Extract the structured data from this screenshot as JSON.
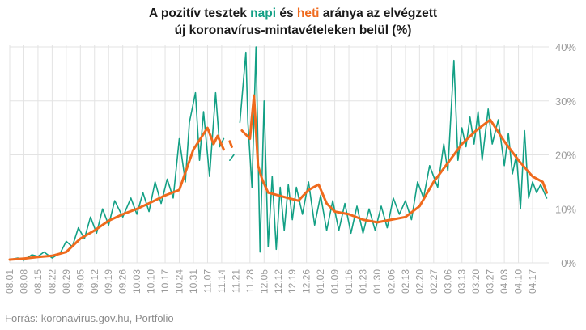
{
  "title": {
    "line1_prefix": "A pozitív tesztek ",
    "napi": "napi",
    "line1_middle": " és ",
    "heti": "heti",
    "line1_suffix": " aránya az elvégzett",
    "line2": "új koronavírus-mintavételeken belül (%)"
  },
  "source": "Forrás: koronavirus.gov.hu, Portfolio",
  "colors": {
    "daily": "#13a085",
    "weekly": "#ef6a1d",
    "grid": "#e3e3e3",
    "tick": "#9a9a9a"
  },
  "chart_data": {
    "type": "line",
    "title": "A pozitív tesztek napi és heti aránya az elvégzett új koronavírus-mintavételeken belül (%)",
    "x_start": "2020-08-01",
    "x_end": "2021-04-25",
    "xlim": [
      "2020-08-01",
      "2021-04-25"
    ],
    "x_tick_labels": [
      "08.01",
      "08.08",
      "08.15",
      "08.22",
      "08.29",
      "09.05",
      "09.12",
      "09.19",
      "09.26",
      "10.03",
      "10.10",
      "10.17",
      "10.24",
      "10.31",
      "11.07",
      "11.14",
      "11.21",
      "11.28",
      "12.05",
      "12.12",
      "12.19",
      "12.26",
      "01.02",
      "01.09",
      "01.16",
      "01.23",
      "01.30",
      "02.06",
      "02.13",
      "02.20",
      "02.27",
      "03.06",
      "03.13",
      "03.20",
      "03.27",
      "04.03",
      "04.10",
      "04.17"
    ],
    "y_ticks": [
      0,
      10,
      20,
      30,
      40
    ],
    "y_tick_labels": [
      "0%",
      "10%",
      "20%",
      "30%",
      "40%"
    ],
    "ylim": [
      0,
      40
    ],
    "grid": true,
    "series": [
      {
        "name": "napi",
        "color": "#13a085",
        "points": [
          [
            "2020-08-01",
            0.6
          ],
          [
            "2020-08-05",
            0.9
          ],
          [
            "2020-08-08",
            0.5
          ],
          [
            "2020-08-12",
            1.5
          ],
          [
            "2020-08-15",
            1.2
          ],
          [
            "2020-08-18",
            2.0
          ],
          [
            "2020-08-22",
            0.9
          ],
          [
            "2020-08-26",
            1.8
          ],
          [
            "2020-08-29",
            4.0
          ],
          [
            "2020-09-01",
            3.0
          ],
          [
            "2020-09-04",
            6.5
          ],
          [
            "2020-09-07",
            4.5
          ],
          [
            "2020-09-10",
            8.5
          ],
          [
            "2020-09-13",
            5.5
          ],
          [
            "2020-09-16",
            10.0
          ],
          [
            "2020-09-19",
            7.0
          ],
          [
            "2020-09-22",
            11.5
          ],
          [
            "2020-09-26",
            8.5
          ],
          [
            "2020-09-30",
            12.0
          ],
          [
            "2020-10-03",
            9.0
          ],
          [
            "2020-10-06",
            13.0
          ],
          [
            "2020-10-09",
            9.5
          ],
          [
            "2020-10-12",
            15.0
          ],
          [
            "2020-10-15",
            11.0
          ],
          [
            "2020-10-18",
            15.5
          ],
          [
            "2020-10-21",
            12.0
          ],
          [
            "2020-10-24",
            23.0
          ],
          [
            "2020-10-27",
            15.0
          ],
          [
            "2020-10-29",
            26.0
          ],
          [
            "2020-11-01",
            31.5
          ],
          [
            "2020-11-03",
            19.0
          ],
          [
            "2020-11-05",
            28.0
          ],
          [
            "2020-11-08",
            16.0
          ],
          [
            "2020-11-11",
            31.5
          ],
          [
            "2020-11-13",
            21.5
          ],
          [
            "2020-11-15",
            23.0
          ],
          [
            "2020-11-16",
            null
          ],
          [
            "2020-11-18",
            19.0
          ],
          [
            "2020-11-20",
            20.0
          ],
          [
            "2020-11-21",
            null
          ],
          [
            "2020-11-23",
            26.0
          ],
          [
            "2020-11-26",
            39.0
          ],
          [
            "2020-11-27",
            26.0
          ],
          [
            "2020-11-29",
            14.0
          ],
          [
            "2020-12-01",
            40.0
          ],
          [
            "2020-12-03",
            2.0
          ],
          [
            "2020-12-05",
            30.0
          ],
          [
            "2020-12-07",
            3.0
          ],
          [
            "2020-12-09",
            16.0
          ],
          [
            "2020-12-11",
            2.5
          ],
          [
            "2020-12-13",
            14.0
          ],
          [
            "2020-12-15",
            6.0
          ],
          [
            "2020-12-17",
            14.5
          ],
          [
            "2020-12-19",
            8.0
          ],
          [
            "2020-12-21",
            14.0
          ],
          [
            "2020-12-24",
            9.0
          ],
          [
            "2020-12-27",
            15.0
          ],
          [
            "2020-12-30",
            7.0
          ],
          [
            "2021-01-02",
            12.5
          ],
          [
            "2021-01-05",
            6.0
          ],
          [
            "2021-01-08",
            11.5
          ],
          [
            "2021-01-11",
            6.0
          ],
          [
            "2021-01-14",
            11.0
          ],
          [
            "2021-01-17",
            5.5
          ],
          [
            "2021-01-20",
            10.5
          ],
          [
            "2021-01-23",
            5.5
          ],
          [
            "2021-01-26",
            10.0
          ],
          [
            "2021-01-29",
            6.0
          ],
          [
            "2021-02-01",
            10.5
          ],
          [
            "2021-02-04",
            6.5
          ],
          [
            "2021-02-07",
            12.0
          ],
          [
            "2021-02-10",
            9.0
          ],
          [
            "2021-02-13",
            11.5
          ],
          [
            "2021-02-16",
            8.0
          ],
          [
            "2021-02-19",
            15.0
          ],
          [
            "2021-02-22",
            12.0
          ],
          [
            "2021-02-25",
            18.0
          ],
          [
            "2021-03-01",
            14.0
          ],
          [
            "2021-03-04",
            22.0
          ],
          [
            "2021-03-06",
            17.0
          ],
          [
            "2021-03-09",
            37.5
          ],
          [
            "2021-03-11",
            19.0
          ],
          [
            "2021-03-13",
            25.0
          ],
          [
            "2021-03-15",
            21.5
          ],
          [
            "2021-03-17",
            27.0
          ],
          [
            "2021-03-19",
            22.0
          ],
          [
            "2021-03-21",
            28.0
          ],
          [
            "2021-03-23",
            19.0
          ],
          [
            "2021-03-26",
            28.5
          ],
          [
            "2021-03-28",
            22.0
          ],
          [
            "2021-03-31",
            26.5
          ],
          [
            "2021-04-03",
            18.0
          ],
          [
            "2021-04-05",
            24.0
          ],
          [
            "2021-04-07",
            16.5
          ],
          [
            "2021-04-09",
            20.0
          ],
          [
            "2021-04-11",
            10.0
          ],
          [
            "2021-04-13",
            24.5
          ],
          [
            "2021-04-15",
            12.0
          ],
          [
            "2021-04-17",
            15.0
          ],
          [
            "2021-04-19",
            13.0
          ],
          [
            "2021-04-21",
            14.5
          ],
          [
            "2021-04-24",
            12.0
          ]
        ]
      },
      {
        "name": "heti",
        "color": "#ef6a1d",
        "points": [
          [
            "2020-08-01",
            0.6
          ],
          [
            "2020-08-08",
            0.8
          ],
          [
            "2020-08-15",
            1.1
          ],
          [
            "2020-08-22",
            1.3
          ],
          [
            "2020-08-29",
            2.0
          ],
          [
            "2020-09-05",
            4.5
          ],
          [
            "2020-09-12",
            6.0
          ],
          [
            "2020-09-19",
            7.8
          ],
          [
            "2020-09-26",
            9.0
          ],
          [
            "2020-10-03",
            10.0
          ],
          [
            "2020-10-10",
            11.2
          ],
          [
            "2020-10-17",
            12.5
          ],
          [
            "2020-10-24",
            13.5
          ],
          [
            "2020-10-31",
            21.0
          ],
          [
            "2020-11-07",
            25.0
          ],
          [
            "2020-11-10",
            22.0
          ],
          [
            "2020-11-12",
            23.5
          ],
          [
            "2020-11-15",
            21.0
          ],
          [
            "2020-11-16",
            null
          ],
          [
            "2020-11-18",
            22.5
          ],
          [
            "2020-11-19",
            21.5
          ],
          [
            "2020-11-20",
            null
          ],
          [
            "2020-11-24",
            24.5
          ],
          [
            "2020-11-28",
            23.0
          ],
          [
            "2020-11-30",
            31.0
          ],
          [
            "2020-12-02",
            18.0
          ],
          [
            "2020-12-04",
            15.5
          ],
          [
            "2020-12-07",
            13.0
          ],
          [
            "2020-12-12",
            12.5
          ],
          [
            "2020-12-17",
            12.0
          ],
          [
            "2020-12-22",
            11.5
          ],
          [
            "2020-12-27",
            13.5
          ],
          [
            "2021-01-01",
            14.5
          ],
          [
            "2021-01-05",
            11.0
          ],
          [
            "2021-01-09",
            9.5
          ],
          [
            "2021-01-16",
            9.0
          ],
          [
            "2021-01-23",
            8.0
          ],
          [
            "2021-01-30",
            7.5
          ],
          [
            "2021-02-06",
            8.0
          ],
          [
            "2021-02-13",
            8.5
          ],
          [
            "2021-02-20",
            10.5
          ],
          [
            "2021-02-27",
            15.0
          ],
          [
            "2021-03-06",
            18.5
          ],
          [
            "2021-03-13",
            22.0
          ],
          [
            "2021-03-20",
            24.5
          ],
          [
            "2021-03-27",
            26.5
          ],
          [
            "2021-04-03",
            22.5
          ],
          [
            "2021-04-10",
            19.0
          ],
          [
            "2021-04-17",
            16.0
          ],
          [
            "2021-04-22",
            15.0
          ],
          [
            "2021-04-24",
            13.0
          ]
        ]
      }
    ]
  }
}
